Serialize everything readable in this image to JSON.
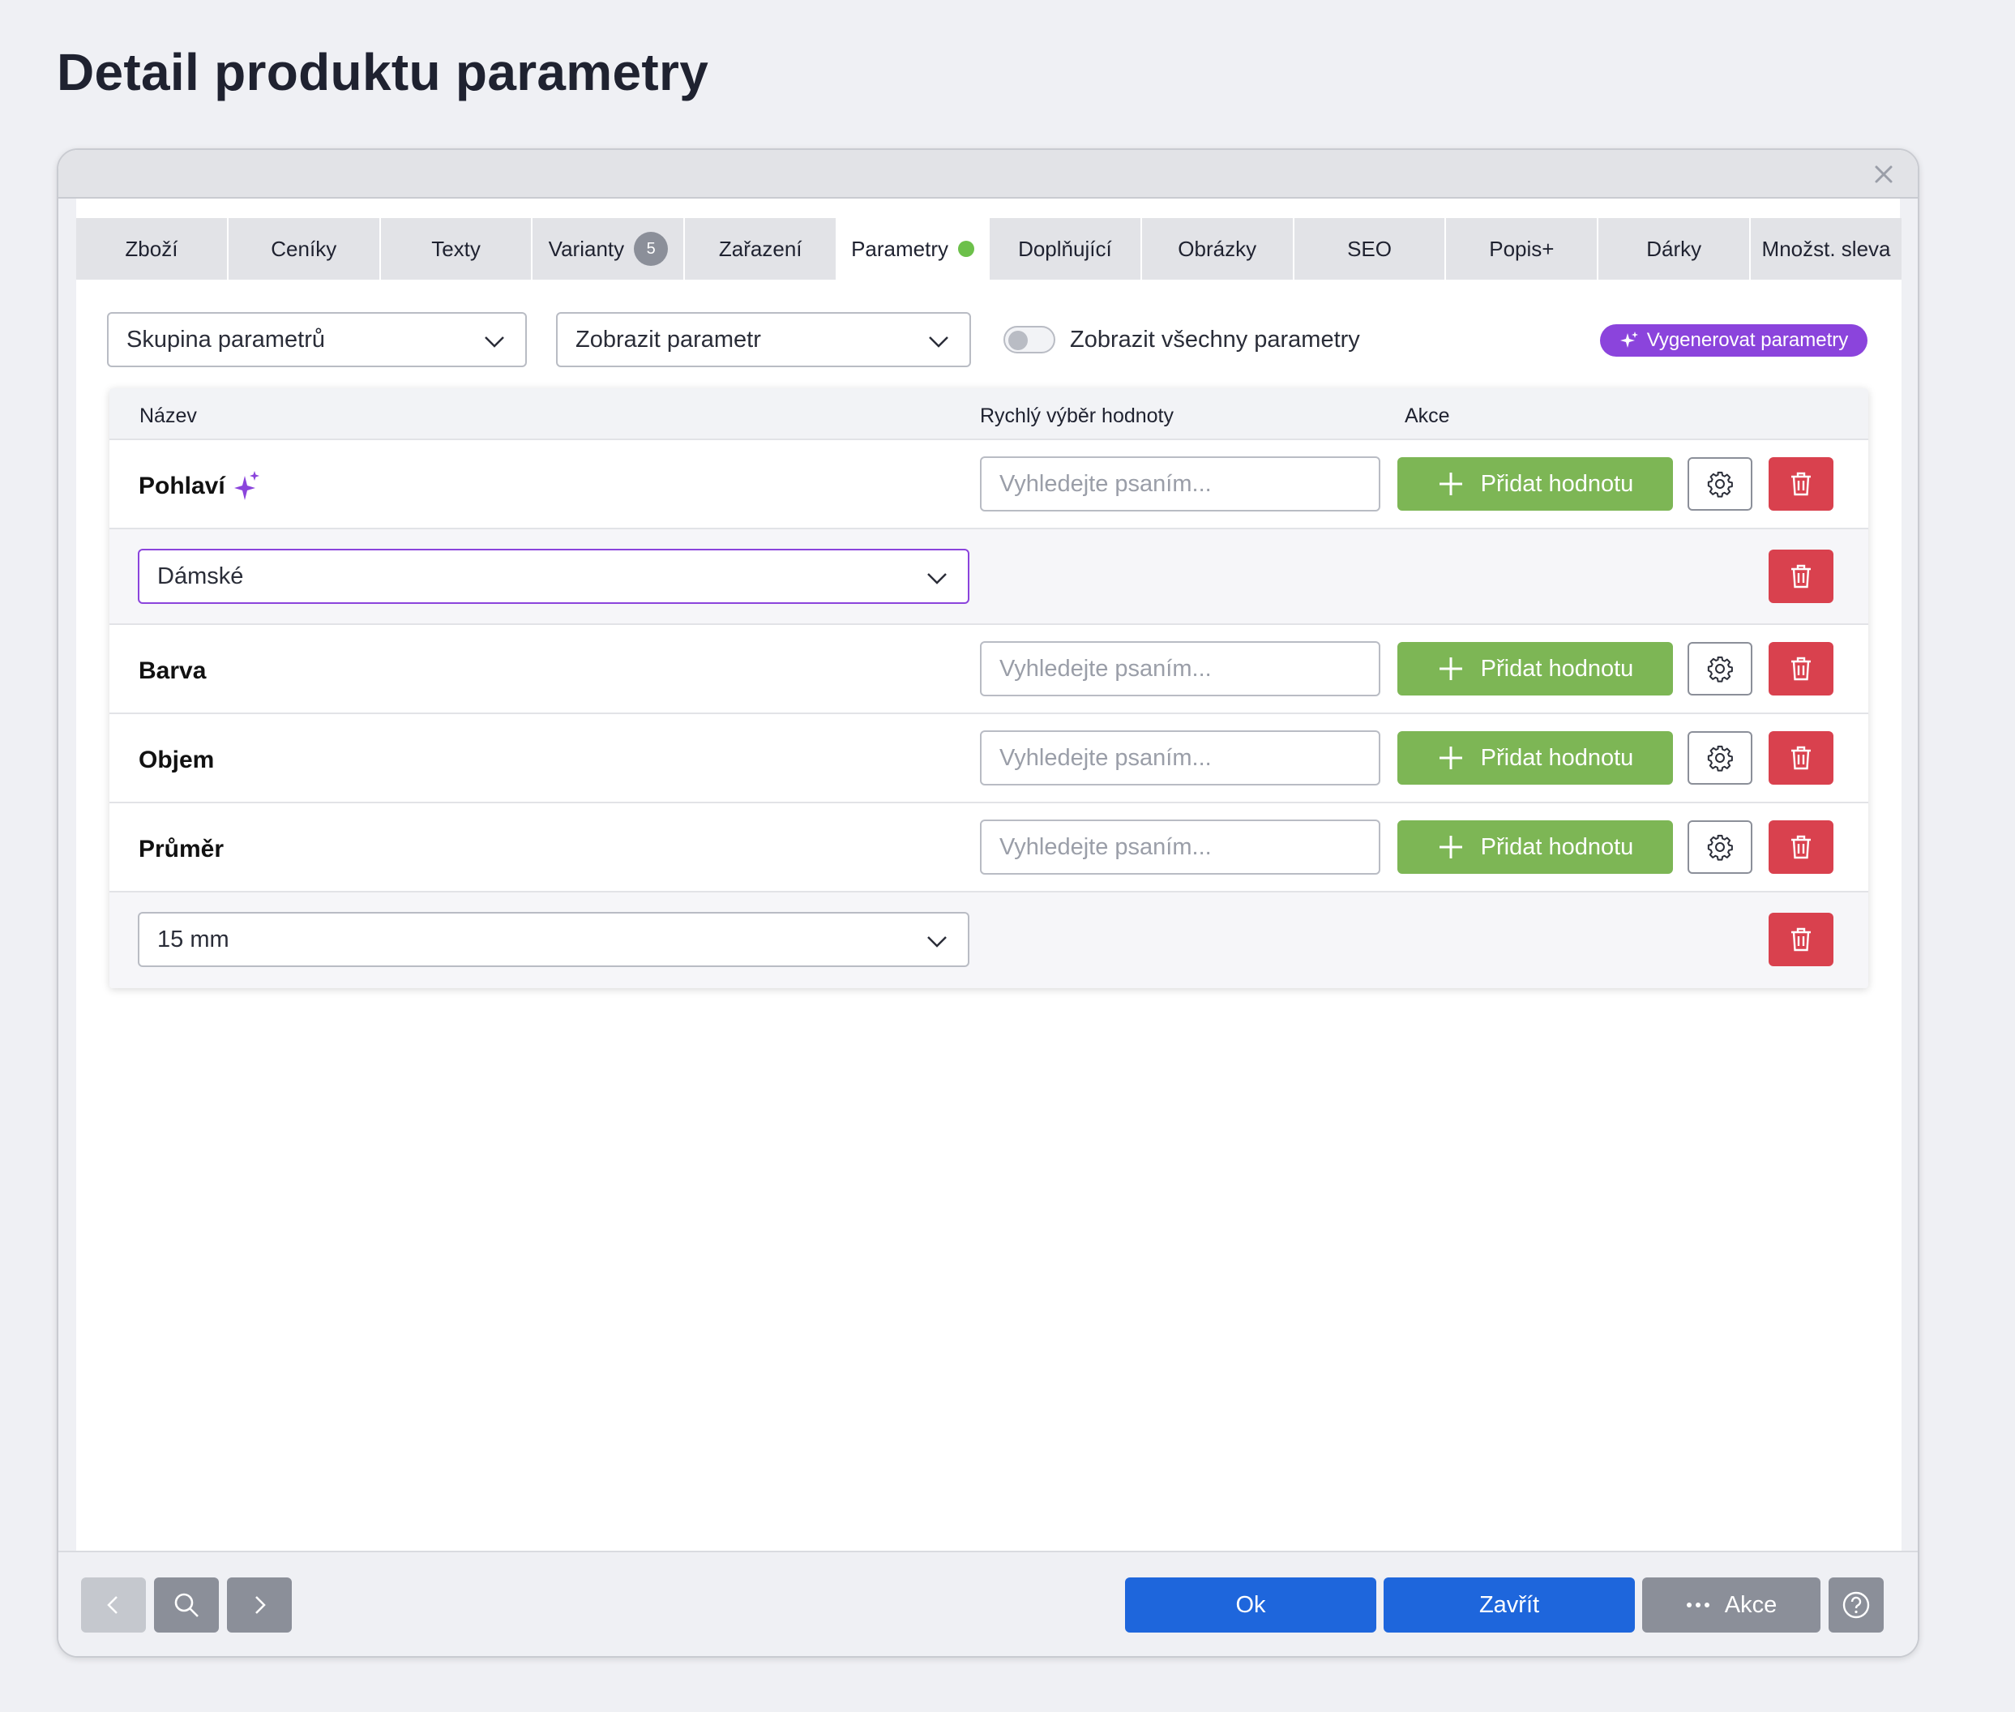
{
  "page_title": "Detail produktu parametry",
  "tabs": [
    {
      "label": "Zboží"
    },
    {
      "label": "Ceníky"
    },
    {
      "label": "Texty"
    },
    {
      "label": "Varianty",
      "badge": "5"
    },
    {
      "label": "Zařazení"
    },
    {
      "label": "Parametry",
      "active": true,
      "status_dot": true
    },
    {
      "label": "Doplňující"
    },
    {
      "label": "Obrázky"
    },
    {
      "label": "SEO"
    },
    {
      "label": "Popis+"
    },
    {
      "label": "Dárky"
    },
    {
      "label": "Množst. sleva"
    }
  ],
  "filters": {
    "group_select": "Skupina parametrů",
    "show_select": "Zobrazit parametr",
    "toggle_label": "Zobrazit všechny parametry",
    "toggle_on": false,
    "ai_button": "Vygenerovat parametry"
  },
  "table": {
    "headers": {
      "name": "Název",
      "quick": "Rychlý výběr hodnoty",
      "actions": "Akce"
    },
    "search_placeholder": "Vyhledejte psaním...",
    "add_label": "Přidat hodnotu",
    "rows": [
      {
        "name": "Pohlaví",
        "ai_icon": true,
        "value": "Dámské"
      },
      {
        "name": "Barva"
      },
      {
        "name": "Objem"
      },
      {
        "name": "Průměr",
        "value": "15 mm"
      }
    ]
  },
  "footer": {
    "ok": "Ok",
    "close": "Zavřít",
    "actions": "Akce"
  },
  "colors": {
    "primary": "#1e66dc",
    "success": "#7db655",
    "danger": "#d9414e",
    "ai_purple": "#8b44dc",
    "gray_button": "#8b8f99"
  }
}
